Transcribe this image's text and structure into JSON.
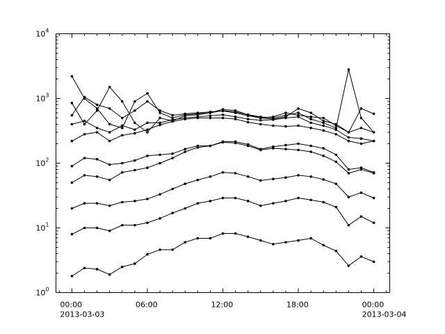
{
  "chart_data": {
    "type": "line",
    "title": "",
    "xlabel": "",
    "ylabel": "",
    "yscale": "log",
    "ylim": [
      1,
      10000
    ],
    "xlim": [
      "2013-03-02T22:44",
      "2013-03-04T01:16"
    ],
    "grid": false,
    "line_color": "#000000",
    "marker": "dot",
    "y_ticks": [
      {
        "value": 1,
        "base": "10",
        "exp": "0"
      },
      {
        "value": 10,
        "base": "10",
        "exp": "1"
      },
      {
        "value": 100,
        "base": "10",
        "exp": "2"
      },
      {
        "value": 1000,
        "base": "10",
        "exp": "3"
      },
      {
        "value": 10000,
        "base": "10",
        "exp": "4"
      }
    ],
    "x_ticks": [
      {
        "value": "2013-03-03T00:00",
        "label": "00:00",
        "sublabel": "2013-03-03"
      },
      {
        "value": "2013-03-03T06:00",
        "label": "06:00",
        "sublabel": ""
      },
      {
        "value": "2013-03-03T12:00",
        "label": "12:00",
        "sublabel": ""
      },
      {
        "value": "2013-03-03T18:00",
        "label": "18:00",
        "sublabel": ""
      },
      {
        "value": "2013-03-04T00:00",
        "label": "00:00",
        "sublabel": "2013-03-04"
      }
    ],
    "x": [
      "2013-03-03T00:00",
      "2013-03-03T01:00",
      "2013-03-03T02:00",
      "2013-03-03T03:00",
      "2013-03-03T04:00",
      "2013-03-03T05:00",
      "2013-03-03T06:00",
      "2013-03-03T07:00",
      "2013-03-03T08:00",
      "2013-03-03T09:00",
      "2013-03-03T10:00",
      "2013-03-03T11:00",
      "2013-03-03T12:00",
      "2013-03-03T13:00",
      "2013-03-03T14:00",
      "2013-03-03T15:00",
      "2013-03-03T16:00",
      "2013-03-03T17:00",
      "2013-03-03T18:00",
      "2013-03-03T19:00",
      "2013-03-03T20:00",
      "2013-03-03T21:00",
      "2013-03-03T22:00",
      "2013-03-03T23:00",
      "2013-03-04T00:00"
    ],
    "series": [
      {
        "values": [
          1.8,
          2.4,
          2.3,
          1.9,
          2.5,
          2.8,
          3.9,
          4.6,
          4.6,
          6,
          6.9,
          6.9,
          8.2,
          8.2,
          7.3,
          6.4,
          5.6,
          6,
          6.4,
          6.9,
          5.4,
          4.4,
          2.6,
          3.6,
          3.0
        ]
      },
      {
        "values": [
          8,
          10,
          10,
          9,
          11,
          11,
          12,
          14,
          17,
          20,
          24,
          26,
          29,
          29,
          26,
          22,
          24,
          26,
          29,
          27,
          25,
          21,
          11,
          15,
          12
        ]
      },
      {
        "values": [
          20,
          24,
          24,
          22,
          25,
          26,
          28,
          33,
          40,
          48,
          55,
          62,
          72,
          70,
          62,
          54,
          57,
          60,
          65,
          62,
          56,
          48,
          30,
          35,
          29
        ]
      },
      {
        "values": [
          50,
          65,
          62,
          55,
          72,
          78,
          85,
          100,
          120,
          150,
          175,
          185,
          210,
          205,
          185,
          160,
          170,
          165,
          160,
          150,
          130,
          105,
          70,
          80,
          70
        ]
      },
      {
        "values": [
          90,
          120,
          115,
          95,
          100,
          110,
          130,
          135,
          140,
          165,
          185,
          185,
          215,
          215,
          195,
          165,
          180,
          190,
          200,
          185,
          170,
          135,
          80,
          85,
          72
        ]
      },
      {
        "values": [
          220,
          280,
          300,
          220,
          270,
          290,
          330,
          390,
          440,
          480,
          500,
          500,
          500,
          480,
          430,
          400,
          380,
          370,
          380,
          350,
          320,
          280,
          220,
          200,
          220
        ]
      },
      {
        "values": [
          400,
          450,
          350,
          300,
          380,
          330,
          420,
          420,
          470,
          500,
          520,
          540,
          560,
          520,
          480,
          460,
          470,
          500,
          520,
          420,
          380,
          330,
          250,
          240,
          220
        ]
      },
      {
        "values": [
          850,
          400,
          650,
          1500,
          900,
          420,
          300,
          500,
          450,
          540,
          560,
          600,
          650,
          620,
          560,
          500,
          480,
          520,
          700,
          600,
          450,
          400,
          300,
          700,
          580
        ]
      },
      {
        "values": [
          2200,
          1000,
          700,
          400,
          350,
          900,
          1200,
          600,
          500,
          560,
          580,
          600,
          680,
          650,
          560,
          520,
          500,
          550,
          600,
          480,
          420,
          350,
          2800,
          500,
          300
        ]
      },
      {
        "values": [
          550,
          1050,
          800,
          700,
          500,
          650,
          900,
          650,
          550,
          580,
          600,
          620,
          640,
          600,
          540,
          500,
          520,
          600,
          550,
          520,
          500,
          380,
          300,
          350,
          300
        ]
      }
    ]
  }
}
